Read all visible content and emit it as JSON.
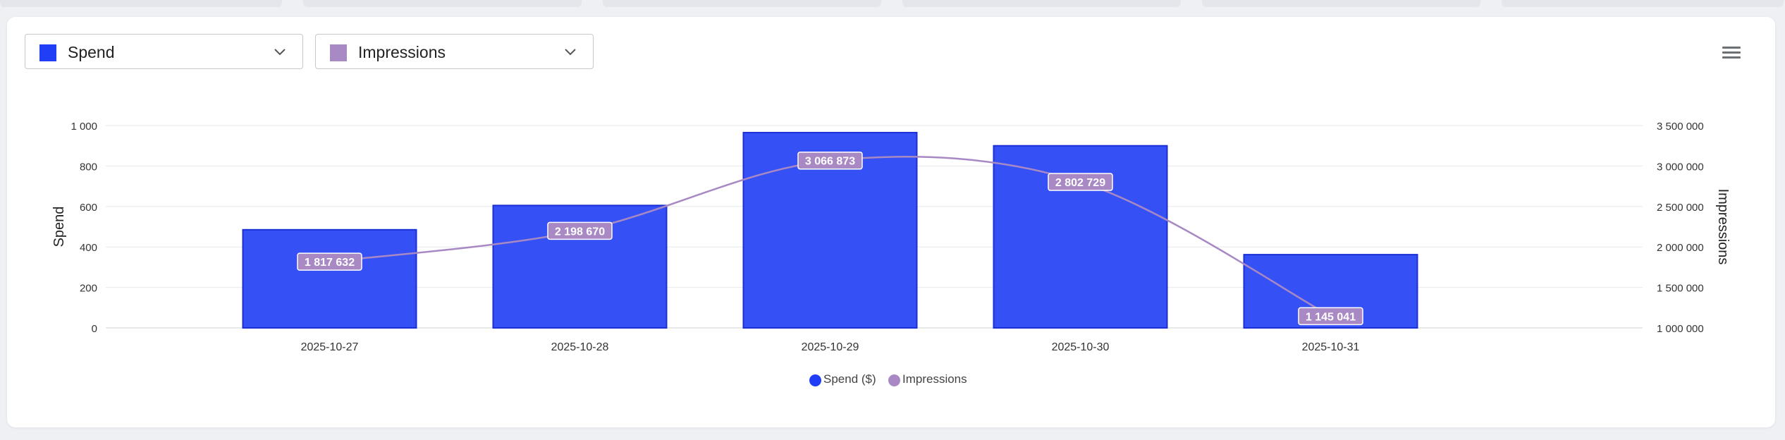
{
  "selectors": [
    {
      "label": "Spend",
      "color": "#1f3ef5"
    },
    {
      "label": "Impressions",
      "color": "#a889c4"
    }
  ],
  "chart_data": {
    "type": "bar",
    "categories": [
      "2025-10-27",
      "2025-10-28",
      "2025-10-29",
      "2025-10-30",
      "2025-10-31"
    ],
    "series": [
      {
        "name": "Spend ($)",
        "type": "bar",
        "axis": "left",
        "color": "#1f3ef5",
        "values": [
          485,
          605,
          965,
          900,
          362
        ]
      },
      {
        "name": "Impressions",
        "type": "line",
        "axis": "right",
        "color": "#a889c4",
        "values": [
          1817632,
          2198670,
          3066873,
          2802729,
          1145041
        ],
        "labels": [
          "1 817 632",
          "2 198 670",
          "3 066 873",
          "2 802 729",
          "1 145 041"
        ]
      }
    ],
    "ylabel": "Spend",
    "ylabel_right": "Impressions",
    "ylim": [
      0,
      1000
    ],
    "ylim_right": [
      1000000,
      3500000
    ],
    "yticks": [
      "0",
      "200",
      "400",
      "600",
      "800",
      "1 000"
    ],
    "yticks_right": [
      "1 000 000",
      "1 500 000",
      "2 000 000",
      "2 500 000",
      "3 000 000",
      "3 500 000"
    ],
    "grid": true,
    "legend_position": "bottom-center"
  }
}
